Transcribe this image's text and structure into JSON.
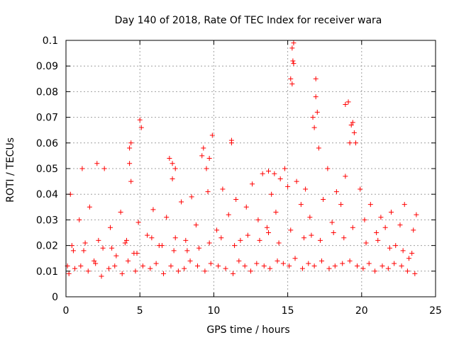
{
  "chart_data": {
    "type": "scatter",
    "title": "Day 140 of 2018, Rate Of TEC Index for receiver wara",
    "xlabel": "GPS time / hours",
    "ylabel": "ROTI / TECUs",
    "xlim": [
      0,
      25
    ],
    "ylim": [
      0,
      0.1
    ],
    "xticks": [
      0,
      5,
      10,
      15,
      20,
      25
    ],
    "xtick_labels": [
      "0",
      "5",
      "10",
      "15",
      "20",
      "25"
    ],
    "yticks": [
      0,
      0.01,
      0.02,
      0.03,
      0.04,
      0.05,
      0.06,
      0.07,
      0.08,
      0.09,
      0.1
    ],
    "ytick_labels": [
      "0",
      "0.01",
      "0.02",
      "0.03",
      "0.04",
      "0.05",
      "0.06",
      "0.07",
      "0.08",
      "0.09",
      "0.1"
    ],
    "grid": true,
    "marker": "+",
    "colors": {
      "points": "#ff0000",
      "grid": "#a0a0a0",
      "axes": "#000000"
    },
    "series": [
      {
        "name": "ROTI",
        "x": [
          0.1,
          0.3,
          0.5,
          0.9,
          1.1,
          1.3,
          1.6,
          1.9,
          2.1,
          2.5,
          2.6,
          3.0,
          3.4,
          3.7,
          4.1,
          4.3,
          4.4,
          4.6,
          4.9,
          5.0,
          5.5,
          5.9,
          6.3,
          6.8,
          7.0,
          7.2,
          7.4,
          7.8,
          8.2,
          8.5,
          8.8,
          9.2,
          9.5,
          9.6,
          9.9,
          10.2,
          10.6,
          11.0,
          11.2,
          11.5,
          11.8,
          12.2,
          12.6,
          13.0,
          13.3,
          13.6,
          13.9,
          14.2,
          14.5,
          14.8,
          15.0,
          15.2,
          15.3,
          15.4,
          15.6,
          15.9,
          16.2,
          16.5,
          16.7,
          16.9,
          17.1,
          17.4,
          17.7,
          18.0,
          18.3,
          18.6,
          18.9,
          19.1,
          19.3,
          19.6,
          19.9,
          20.2,
          20.6,
          21.0,
          21.3,
          21.6,
          22.0,
          22.3,
          22.6,
          22.9,
          23.2,
          23.5,
          23.7,
          0.2,
          0.6,
          1.0,
          1.5,
          2.0,
          2.4,
          2.9,
          3.3,
          3.8,
          4.2,
          4.7,
          5.2,
          5.7,
          6.1,
          6.6,
          7.1,
          7.6,
          8.0,
          8.4,
          8.9,
          9.4,
          9.8,
          10.3,
          10.8,
          11.3,
          11.7,
          12.1,
          12.5,
          12.9,
          13.4,
          13.8,
          14.3,
          14.7,
          15.1,
          15.5,
          16.0,
          16.4,
          16.8,
          17.3,
          17.8,
          18.2,
          18.7,
          19.2,
          19.7,
          20.1,
          20.5,
          20.9,
          21.4,
          21.8,
          22.2,
          22.7,
          23.1,
          23.6,
          0.4,
          1.2,
          2.2,
          3.1,
          4.0,
          4.8,
          5.8,
          6.5,
          7.3,
          8.1,
          9.0,
          9.7,
          10.5,
          11.4,
          12.3,
          13.1,
          13.7,
          14.4,
          15.2,
          16.1,
          16.6,
          17.2,
          18.1,
          18.8,
          19.4,
          20.3,
          21.1,
          21.9,
          22.8,
          23.4,
          4.4,
          5.1,
          7.2,
          9.7,
          11.2,
          13.7,
          15.3,
          15.35,
          15.4,
          16.8,
          16.9,
          17.0,
          18.9,
          19.2,
          19.4,
          19.5,
          9.3,
          4.3,
          7.4,
          14.1
        ],
        "y": [
          0.012,
          0.04,
          0.018,
          0.03,
          0.05,
          0.021,
          0.035,
          0.014,
          0.052,
          0.019,
          0.05,
          0.027,
          0.016,
          0.033,
          0.022,
          0.058,
          0.045,
          0.017,
          0.029,
          0.069,
          0.024,
          0.034,
          0.02,
          0.031,
          0.054,
          0.046,
          0.023,
          0.037,
          0.018,
          0.039,
          0.028,
          0.055,
          0.05,
          0.041,
          0.063,
          0.026,
          0.042,
          0.032,
          0.061,
          0.038,
          0.022,
          0.035,
          0.044,
          0.03,
          0.048,
          0.027,
          0.04,
          0.033,
          0.046,
          0.05,
          0.043,
          0.085,
          0.097,
          0.091,
          0.045,
          0.036,
          0.042,
          0.031,
          0.07,
          0.078,
          0.058,
          0.038,
          0.05,
          0.029,
          0.041,
          0.036,
          0.047,
          0.076,
          0.067,
          0.06,
          0.042,
          0.03,
          0.036,
          0.025,
          0.031,
          0.027,
          0.033,
          0.02,
          0.028,
          0.036,
          0.015,
          0.026,
          0.032,
          0.009,
          0.011,
          0.012,
          0.01,
          0.013,
          0.008,
          0.011,
          0.012,
          0.009,
          0.014,
          0.01,
          0.012,
          0.011,
          0.013,
          0.009,
          0.012,
          0.01,
          0.011,
          0.014,
          0.012,
          0.01,
          0.013,
          0.012,
          0.011,
          0.009,
          0.014,
          0.012,
          0.01,
          0.013,
          0.012,
          0.011,
          0.014,
          0.013,
          0.012,
          0.015,
          0.011,
          0.013,
          0.012,
          0.014,
          0.011,
          0.012,
          0.013,
          0.014,
          0.012,
          0.011,
          0.013,
          0.01,
          0.012,
          0.011,
          0.013,
          0.012,
          0.01,
          0.009,
          0.02,
          0.018,
          0.022,
          0.019,
          0.021,
          0.017,
          0.023,
          0.02,
          0.018,
          0.022,
          0.019,
          0.021,
          0.023,
          0.02,
          0.024,
          0.022,
          0.025,
          0.021,
          0.026,
          0.023,
          0.024,
          0.022,
          0.025,
          0.023,
          0.027,
          0.021,
          0.022,
          0.019,
          0.018,
          0.017,
          0.06,
          0.066,
          0.052,
          0.054,
          0.06,
          0.049,
          0.083,
          0.092,
          0.099,
          0.066,
          0.085,
          0.072,
          0.075,
          0.06,
          0.068,
          0.064,
          0.058,
          0.052,
          0.05,
          0.048
        ]
      }
    ]
  }
}
